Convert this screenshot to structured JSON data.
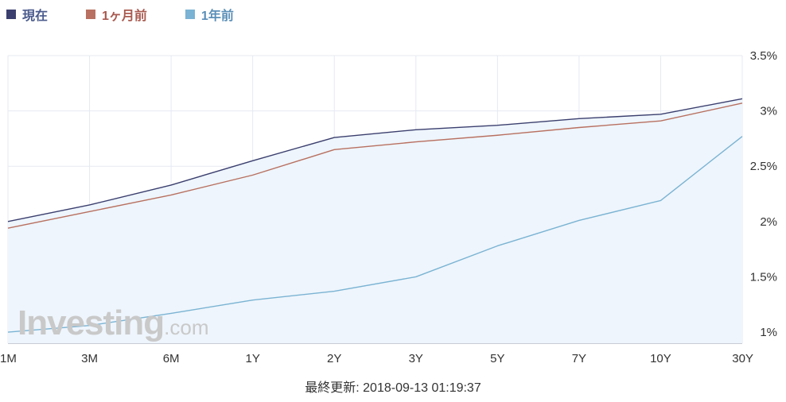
{
  "legend": {
    "items": [
      {
        "label": "現在",
        "color": "#3b3f6e",
        "text_color": "#4a5a8c"
      },
      {
        "label": "1ヶ月前",
        "color": "#b87060",
        "text_color": "#a85a50"
      },
      {
        "label": "1年前",
        "color": "#7ab3d3",
        "text_color": "#5b8fb8"
      }
    ]
  },
  "watermark": {
    "main": "Investing",
    "suffix": ".com"
  },
  "footer": {
    "text": "最終更新: 2018-09-13 01:19:37"
  },
  "chart_data": {
    "type": "line",
    "categories": [
      "1M",
      "3M",
      "6M",
      "1Y",
      "2Y",
      "3Y",
      "5Y",
      "7Y",
      "10Y",
      "30Y"
    ],
    "series": [
      {
        "name": "現在",
        "color": "#3b3f6e",
        "values": [
          2.0,
          2.15,
          2.33,
          2.55,
          2.76,
          2.83,
          2.87,
          2.93,
          2.97,
          3.11
        ]
      },
      {
        "name": "1ヶ月前",
        "color": "#b87060",
        "values": [
          1.94,
          2.09,
          2.24,
          2.42,
          2.65,
          2.72,
          2.78,
          2.85,
          2.91,
          3.07
        ]
      },
      {
        "name": "1年前",
        "color": "#7ab3d3",
        "values": [
          1.0,
          1.06,
          1.17,
          1.29,
          1.37,
          1.5,
          1.78,
          2.01,
          2.19,
          2.77
        ]
      }
    ],
    "ylim": [
      0.9,
      3.5
    ],
    "yticks": [
      1,
      1.5,
      2,
      2.5,
      3,
      3.5
    ],
    "ytick_labels": [
      "1%",
      "1.5%",
      "2%",
      "2.5%",
      "3%",
      "3.5%"
    ],
    "area_fill": "#eef5fc",
    "grid": true,
    "legend_position": "top-left"
  }
}
